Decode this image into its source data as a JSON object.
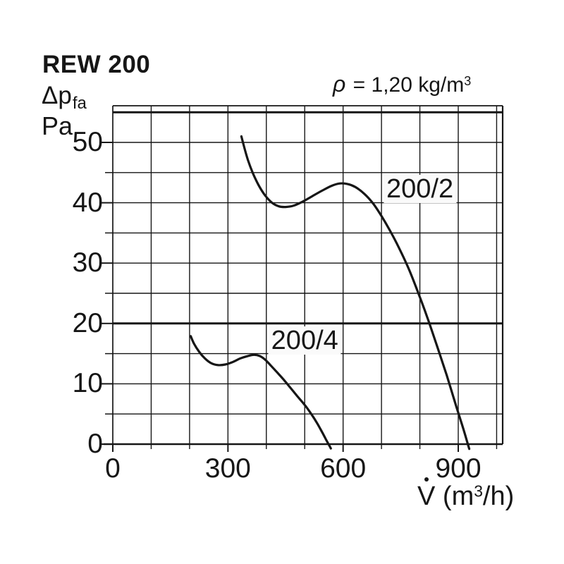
{
  "header": {
    "title": "REW 200"
  },
  "y_axis_title": {
    "symbol": "Δp",
    "subscript": "fa",
    "unit": "Pa"
  },
  "density": {
    "symbol": "ρ",
    "equation": " = 1,20 ",
    "unit_base": "kg/m",
    "unit_sup": "3"
  },
  "x_axis_title": {
    "symbol": "V",
    "has_dot": true,
    "unit_open": " (m",
    "unit_sup": "3",
    "unit_close": "/h)"
  },
  "chart_data": {
    "type": "line",
    "title": "REW 200",
    "xlabel": "V̇ (m³/h)",
    "ylabel": "Δp fa, Pa",
    "annotation": "ρ = 1,20 kg/m³",
    "x_ticks": [
      0,
      300,
      600,
      900
    ],
    "x_minor_step": 100,
    "xlim": [
      0,
      1016
    ],
    "y_ticks": [
      0,
      10,
      20,
      30,
      40,
      50
    ],
    "y_minor_step": 5,
    "ylim": [
      0,
      56
    ],
    "grid": true,
    "thick_y_gridlines_pa": [
      20,
      55
    ],
    "line_color": "#161616",
    "series": [
      {
        "name": "200/2",
        "label_at": [
          800,
          42.3
        ],
        "points": [
          [
            335,
            51.0
          ],
          [
            342,
            49.3
          ],
          [
            352,
            47.1
          ],
          [
            365,
            44.9
          ],
          [
            380,
            42.9
          ],
          [
            397,
            41.2
          ],
          [
            415,
            40.0
          ],
          [
            433,
            39.4
          ],
          [
            450,
            39.3
          ],
          [
            470,
            39.5
          ],
          [
            495,
            40.2
          ],
          [
            520,
            41.1
          ],
          [
            545,
            42.0
          ],
          [
            570,
            42.8
          ],
          [
            592,
            43.2
          ],
          [
            612,
            43.1
          ],
          [
            632,
            42.6
          ],
          [
            655,
            41.5
          ],
          [
            678,
            39.9
          ],
          [
            700,
            37.8
          ],
          [
            722,
            35.4
          ],
          [
            745,
            32.6
          ],
          [
            770,
            29.2
          ],
          [
            795,
            25.2
          ],
          [
            820,
            20.9
          ],
          [
            845,
            16.2
          ],
          [
            870,
            11.4
          ],
          [
            895,
            6.2
          ],
          [
            912,
            2.8
          ],
          [
            925,
            0
          ]
        ]
      },
      {
        "name": "200/4",
        "label_at": [
          500,
          17.2
        ],
        "points": [
          [
            203,
            17.9
          ],
          [
            212,
            16.6
          ],
          [
            225,
            15.3
          ],
          [
            240,
            14.2
          ],
          [
            257,
            13.4
          ],
          [
            275,
            13.1
          ],
          [
            293,
            13.2
          ],
          [
            312,
            13.6
          ],
          [
            332,
            14.2
          ],
          [
            352,
            14.6
          ],
          [
            368,
            14.8
          ],
          [
            383,
            14.6
          ],
          [
            397,
            14.0
          ],
          [
            412,
            13.0
          ],
          [
            428,
            11.9
          ],
          [
            445,
            10.7
          ],
          [
            462,
            9.4
          ],
          [
            480,
            8.0
          ],
          [
            500,
            6.5
          ],
          [
            517,
            5.0
          ],
          [
            533,
            3.4
          ],
          [
            546,
            1.9
          ],
          [
            556,
            0.7
          ],
          [
            562,
            0
          ]
        ]
      }
    ]
  }
}
